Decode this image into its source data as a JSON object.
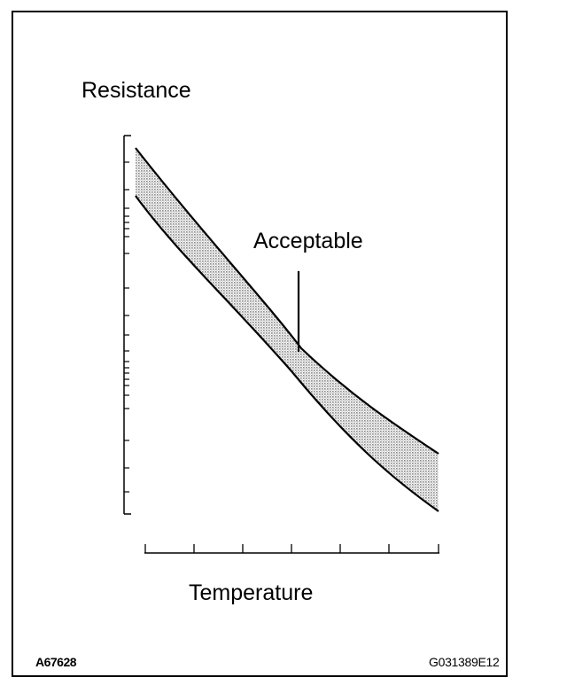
{
  "diagram": {
    "y_axis_label": "Resistance",
    "x_axis_label": "Temperature",
    "band_label": "Acceptable",
    "figure_code_left": "A67628",
    "figure_code_right": "G031389E12",
    "y_scale": "log",
    "band_fill": "#d4d4d4",
    "line_color": "#000000"
  }
}
